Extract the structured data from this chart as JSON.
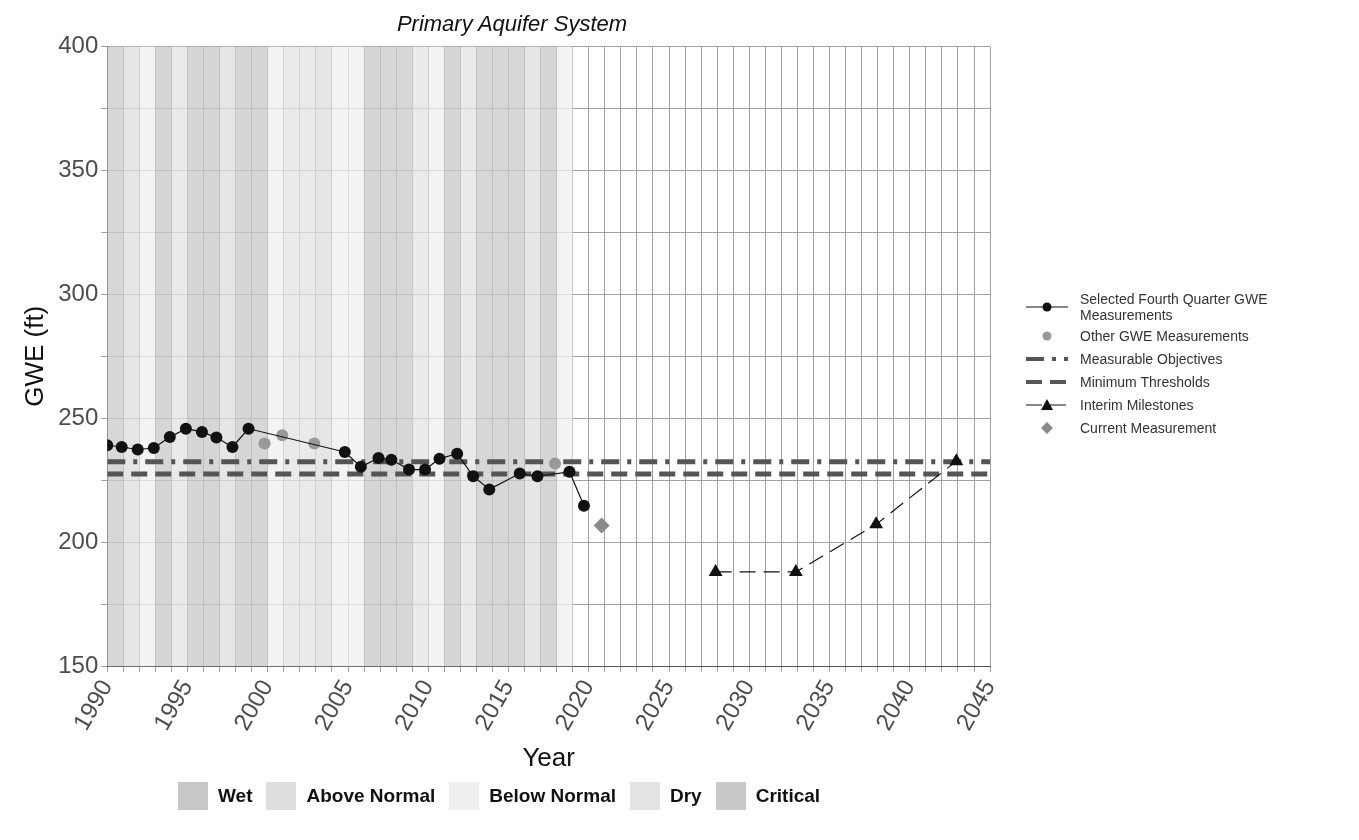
{
  "chart_data": {
    "type": "line",
    "title": "Primary Aquifer System",
    "xlabel": "Year",
    "ylabel": "GWE (ft)",
    "xlim": [
      1990,
      2045
    ],
    "ylim": [
      150,
      400
    ],
    "xticks": [
      1990,
      {
        "value": 1991,
        "label": null
      },
      {
        "value": 1992,
        "label": null
      },
      {
        "value": 1993,
        "label": null
      },
      {
        "value": 1994,
        "label": null
      },
      1995,
      {
        "value": 1996,
        "label": null
      },
      {
        "value": 1997,
        "label": null
      },
      {
        "value": 1998,
        "label": null
      },
      {
        "value": 1999,
        "label": null
      },
      2000,
      {
        "value": 2001,
        "label": null
      },
      {
        "value": 2002,
        "label": null
      },
      {
        "value": 2003,
        "label": null
      },
      {
        "value": 2004,
        "label": null
      },
      2005,
      {
        "value": 2006,
        "label": null
      },
      {
        "value": 2007,
        "label": null
      },
      {
        "value": 2008,
        "label": null
      },
      {
        "value": 2009,
        "label": null
      },
      2010,
      {
        "value": 2011,
        "label": null
      },
      {
        "value": 2012,
        "label": null
      },
      {
        "value": 2013,
        "label": null
      },
      {
        "value": 2014,
        "label": null
      },
      2015,
      {
        "value": 2016,
        "label": null
      },
      {
        "value": 2017,
        "label": null
      },
      {
        "value": 2018,
        "label": null
      },
      {
        "value": 2019,
        "label": null
      },
      2020,
      {
        "value": 2021,
        "label": null
      },
      {
        "value": 2022,
        "label": null
      },
      {
        "value": 2023,
        "label": null
      },
      {
        "value": 2024,
        "label": null
      },
      2025,
      {
        "value": 2026,
        "label": null
      },
      {
        "value": 2027,
        "label": null
      },
      {
        "value": 2028,
        "label": null
      },
      {
        "value": 2029,
        "label": null
      },
      2030,
      {
        "value": 2031,
        "label": null
      },
      {
        "value": 2032,
        "label": null
      },
      {
        "value": 2033,
        "label": null
      },
      {
        "value": 2034,
        "label": null
      },
      2035,
      {
        "value": 2036,
        "label": null
      },
      {
        "value": 2037,
        "label": null
      },
      {
        "value": 2038,
        "label": null
      },
      {
        "value": 2039,
        "label": null
      },
      2040,
      {
        "value": 2041,
        "label": null
      },
      {
        "value": 2042,
        "label": null
      },
      {
        "value": 2043,
        "label": null
      },
      {
        "value": 2044,
        "label": null
      },
      2045
    ],
    "yticks": [
      150,
      {
        "value": 175,
        "label": null
      },
      200,
      {
        "value": 225,
        "label": null
      },
      250,
      {
        "value": 275,
        "label": null
      },
      300,
      {
        "value": 325,
        "label": null
      },
      350,
      {
        "value": 375,
        "label": null
      },
      400
    ],
    "grid": true,
    "legend": "right",
    "series": [
      {
        "name": "Selected Fourth Quarter GWE Measurements",
        "color": "#111111",
        "marker": "circle",
        "line_style": "solid",
        "x": [
          1990.0,
          1990.9,
          1991.9,
          1992.9,
          1993.9,
          1994.9,
          1995.9,
          1996.8,
          1997.8,
          1998.8,
          2004.8,
          2005.8,
          2006.9,
          2007.7,
          2008.8,
          2009.8,
          2010.7,
          2011.8,
          2012.8,
          2013.8,
          2015.7,
          2016.8,
          2018.8,
          2019.7
        ],
        "values": [
          239.1,
          238.4,
          237.4,
          238.0,
          242.4,
          245.8,
          244.5,
          242.2,
          238.4,
          245.8,
          236.4,
          230.4,
          234.0,
          233.3,
          229.3,
          229.3,
          233.7,
          235.7,
          226.6,
          221.3,
          227.7,
          226.6,
          228.4,
          214.7
        ]
      },
      {
        "name": "Other GWE Measurements",
        "type": "scatter",
        "color": "#999999",
        "marker": "circle",
        "x": [
          1999.8,
          2000.9,
          2002.9,
          2017.9
        ],
        "values": [
          239.8,
          243.1,
          239.8,
          231.7
        ]
      },
      {
        "name": "Interim Milestones",
        "color": "#111111",
        "marker": "triangle",
        "line_style": "dashed",
        "x": [
          2027.9,
          2032.9,
          2037.9,
          2042.9
        ],
        "values": [
          188,
          188,
          207.2,
          232.7
        ]
      },
      {
        "name": "Current Measurement",
        "type": "scatter",
        "color": "#8a8a8a",
        "marker": "diamond",
        "x": [
          2020.8
        ],
        "values": [
          206.7
        ]
      }
    ],
    "ref_lines": [
      {
        "axis": "y",
        "value": 232.5,
        "label": "Measurable Objectives",
        "color": "#555555",
        "line_style": "dashdot"
      },
      {
        "axis": "y",
        "value": 227.5,
        "label": "Minimum Thresholds",
        "color": "#555555",
        "line_style": "dashed"
      }
    ],
    "bands": [
      {
        "axis": "x",
        "from": 1993,
        "to": 1994,
        "label": "Wet",
        "color": "#c8c8c8"
      },
      {
        "axis": "x",
        "from": 1995,
        "to": 1997,
        "color": "#c8c8c8"
      },
      {
        "axis": "x",
        "from": 1998,
        "to": 2000,
        "color": "#c8c8c8"
      },
      {
        "axis": "x",
        "from": 2006,
        "to": 2007,
        "color": "#c8c8c8"
      },
      {
        "axis": "x",
        "from": 2011,
        "to": 2012,
        "color": "#c8c8c8"
      },
      {
        "axis": "x",
        "from": 2017,
        "to": 2018,
        "color": "#c8c8c8"
      },
      {
        "axis": "x",
        "from": 1991,
        "to": 1992,
        "label": "Above Normal",
        "color": "#dedede"
      },
      {
        "axis": "x",
        "from": 1997,
        "to": 1998,
        "color": "#dedede"
      },
      {
        "axis": "x",
        "from": 2003,
        "to": 2004,
        "color": "#dedede"
      },
      {
        "axis": "x",
        "from": 2016,
        "to": 2017,
        "color": "#dedede"
      },
      {
        "axis": "x",
        "from": 1992,
        "to": 1993,
        "label": "Below Normal",
        "color": "#efefef"
      },
      {
        "axis": "x",
        "from": 2000,
        "to": 2001,
        "color": "#efefef"
      },
      {
        "axis": "x",
        "from": 2004,
        "to": 2006,
        "color": "#efefef"
      },
      {
        "axis": "x",
        "from": 2010,
        "to": 2011,
        "color": "#efefef"
      },
      {
        "axis": "x",
        "from": 2018,
        "to": 2019,
        "color": "#efefef"
      },
      {
        "axis": "x",
        "from": 1994,
        "to": 1995,
        "label": "Dry",
        "color": "#e3e3e3"
      },
      {
        "axis": "x",
        "from": 2001,
        "to": 2003,
        "color": "#e3e3e3"
      },
      {
        "axis": "x",
        "from": 2009,
        "to": 2010,
        "color": "#e3e3e3"
      },
      {
        "axis": "x",
        "from": 2012,
        "to": 2013,
        "color": "#e3e3e3"
      },
      {
        "axis": "x",
        "from": 1990,
        "to": 1991,
        "label": "Critical",
        "color": "#c9c9c9"
      },
      {
        "axis": "x",
        "from": 2007,
        "to": 2009,
        "color": "#c9c9c9"
      },
      {
        "axis": "x",
        "from": 2013,
        "to": 2016,
        "color": "#c9c9c9"
      }
    ]
  }
}
